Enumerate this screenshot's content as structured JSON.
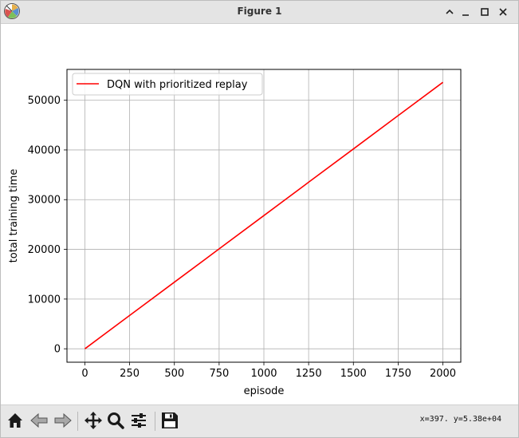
{
  "window": {
    "title": "Figure 1",
    "icons": {
      "app": "matplotlib-logo-icon",
      "collapse": "chevron-up-icon",
      "minimize": "minimize-icon",
      "maximize": "maximize-icon",
      "close": "close-icon"
    }
  },
  "toolbar": {
    "buttons": [
      "home-icon",
      "back-arrow-icon",
      "forward-arrow-icon",
      "pan-move-icon",
      "zoom-magnifier-icon",
      "configure-subplots-icon",
      "save-floppy-icon"
    ],
    "coords": "x=397. y=5.38e+04"
  },
  "chart_data": {
    "type": "line",
    "title": "",
    "xlabel": "episode",
    "ylabel": "total training time",
    "xlim": [
      -100,
      2100
    ],
    "ylim": [
      -2700,
      56200
    ],
    "xticks": [
      0,
      250,
      500,
      750,
      1000,
      1250,
      1500,
      1750,
      2000
    ],
    "yticks": [
      0,
      10000,
      20000,
      30000,
      40000,
      50000
    ],
    "xtick_labels": [
      "0",
      "250",
      "500",
      "750",
      "1000",
      "1250",
      "1500",
      "1750",
      "2000"
    ],
    "ytick_labels": [
      "0",
      "10000",
      "20000",
      "30000",
      "40000",
      "50000"
    ],
    "grid": true,
    "legend_position": "upper-left",
    "series": [
      {
        "name": "DQN with prioritized replay",
        "color": "#ff0000",
        "x": [
          0,
          250,
          500,
          750,
          1000,
          1250,
          1500,
          1750,
          2000
        ],
        "y": [
          0,
          6700,
          13400,
          20100,
          26800,
          33500,
          40200,
          46900,
          53600
        ]
      }
    ]
  }
}
